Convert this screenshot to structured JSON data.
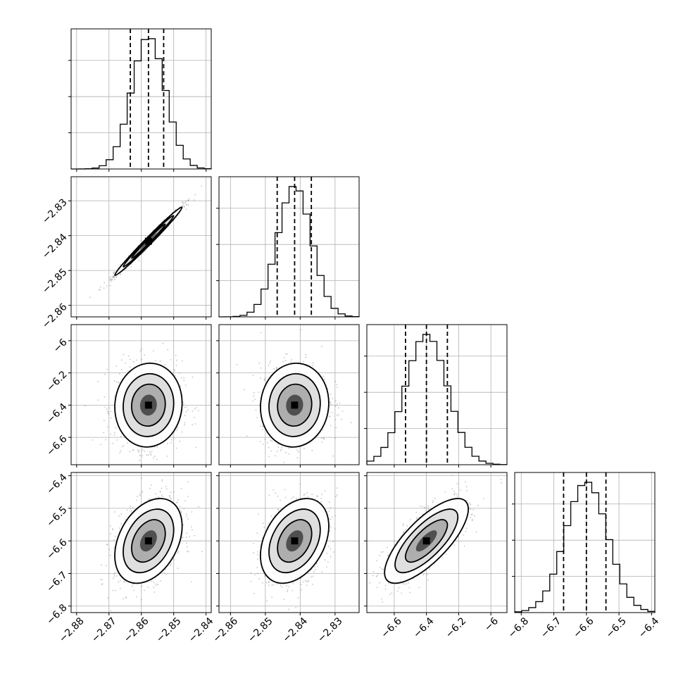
{
  "chart_data": {
    "type": "corner",
    "parameters": [
      {
        "ticks": [
          -2.88,
          -2.87,
          -2.86,
          -2.85,
          -2.84
        ],
        "range": [
          -2.8817,
          -2.8384
        ],
        "median": -2.8578,
        "q16": -2.8634,
        "q84": -2.8531,
        "sigma": 0.0052
      },
      {
        "ticks": [
          -2.86,
          -2.85,
          -2.84,
          -2.83
        ],
        "range": [
          -2.8633,
          -2.8231
        ],
        "median": -2.8416,
        "q16": -2.8466,
        "q84": -2.8368,
        "sigma": 0.0049
      },
      {
        "ticks": [
          -6.6,
          -6.4,
          -6.2,
          -6.0
        ],
        "range": [
          -6.77,
          -5.9
        ],
        "median": -6.4,
        "q16": -6.53,
        "q84": -6.27,
        "sigma": 0.13
      },
      {
        "ticks": [
          -6.8,
          -6.7,
          -6.6,
          -6.5,
          -6.4
        ],
        "range": [
          -6.82,
          -6.39
        ],
        "median": -6.6,
        "q16": -6.67,
        "q84": -6.54,
        "sigma": 0.065
      }
    ],
    "correlations": [
      [
        1,
        0.99,
        0.05,
        0.35
      ],
      [
        0.99,
        1,
        0.05,
        0.35
      ],
      [
        0.05,
        0.05,
        1,
        0.75
      ],
      [
        0.35,
        0.35,
        0.75,
        1
      ]
    ],
    "colors": {
      "lines": "#000000",
      "grid": "#b0b0b0",
      "points": "#7f7f7f"
    },
    "grid": true,
    "histogram_quantile_lines": "dashed",
    "contour_levels": 3
  }
}
